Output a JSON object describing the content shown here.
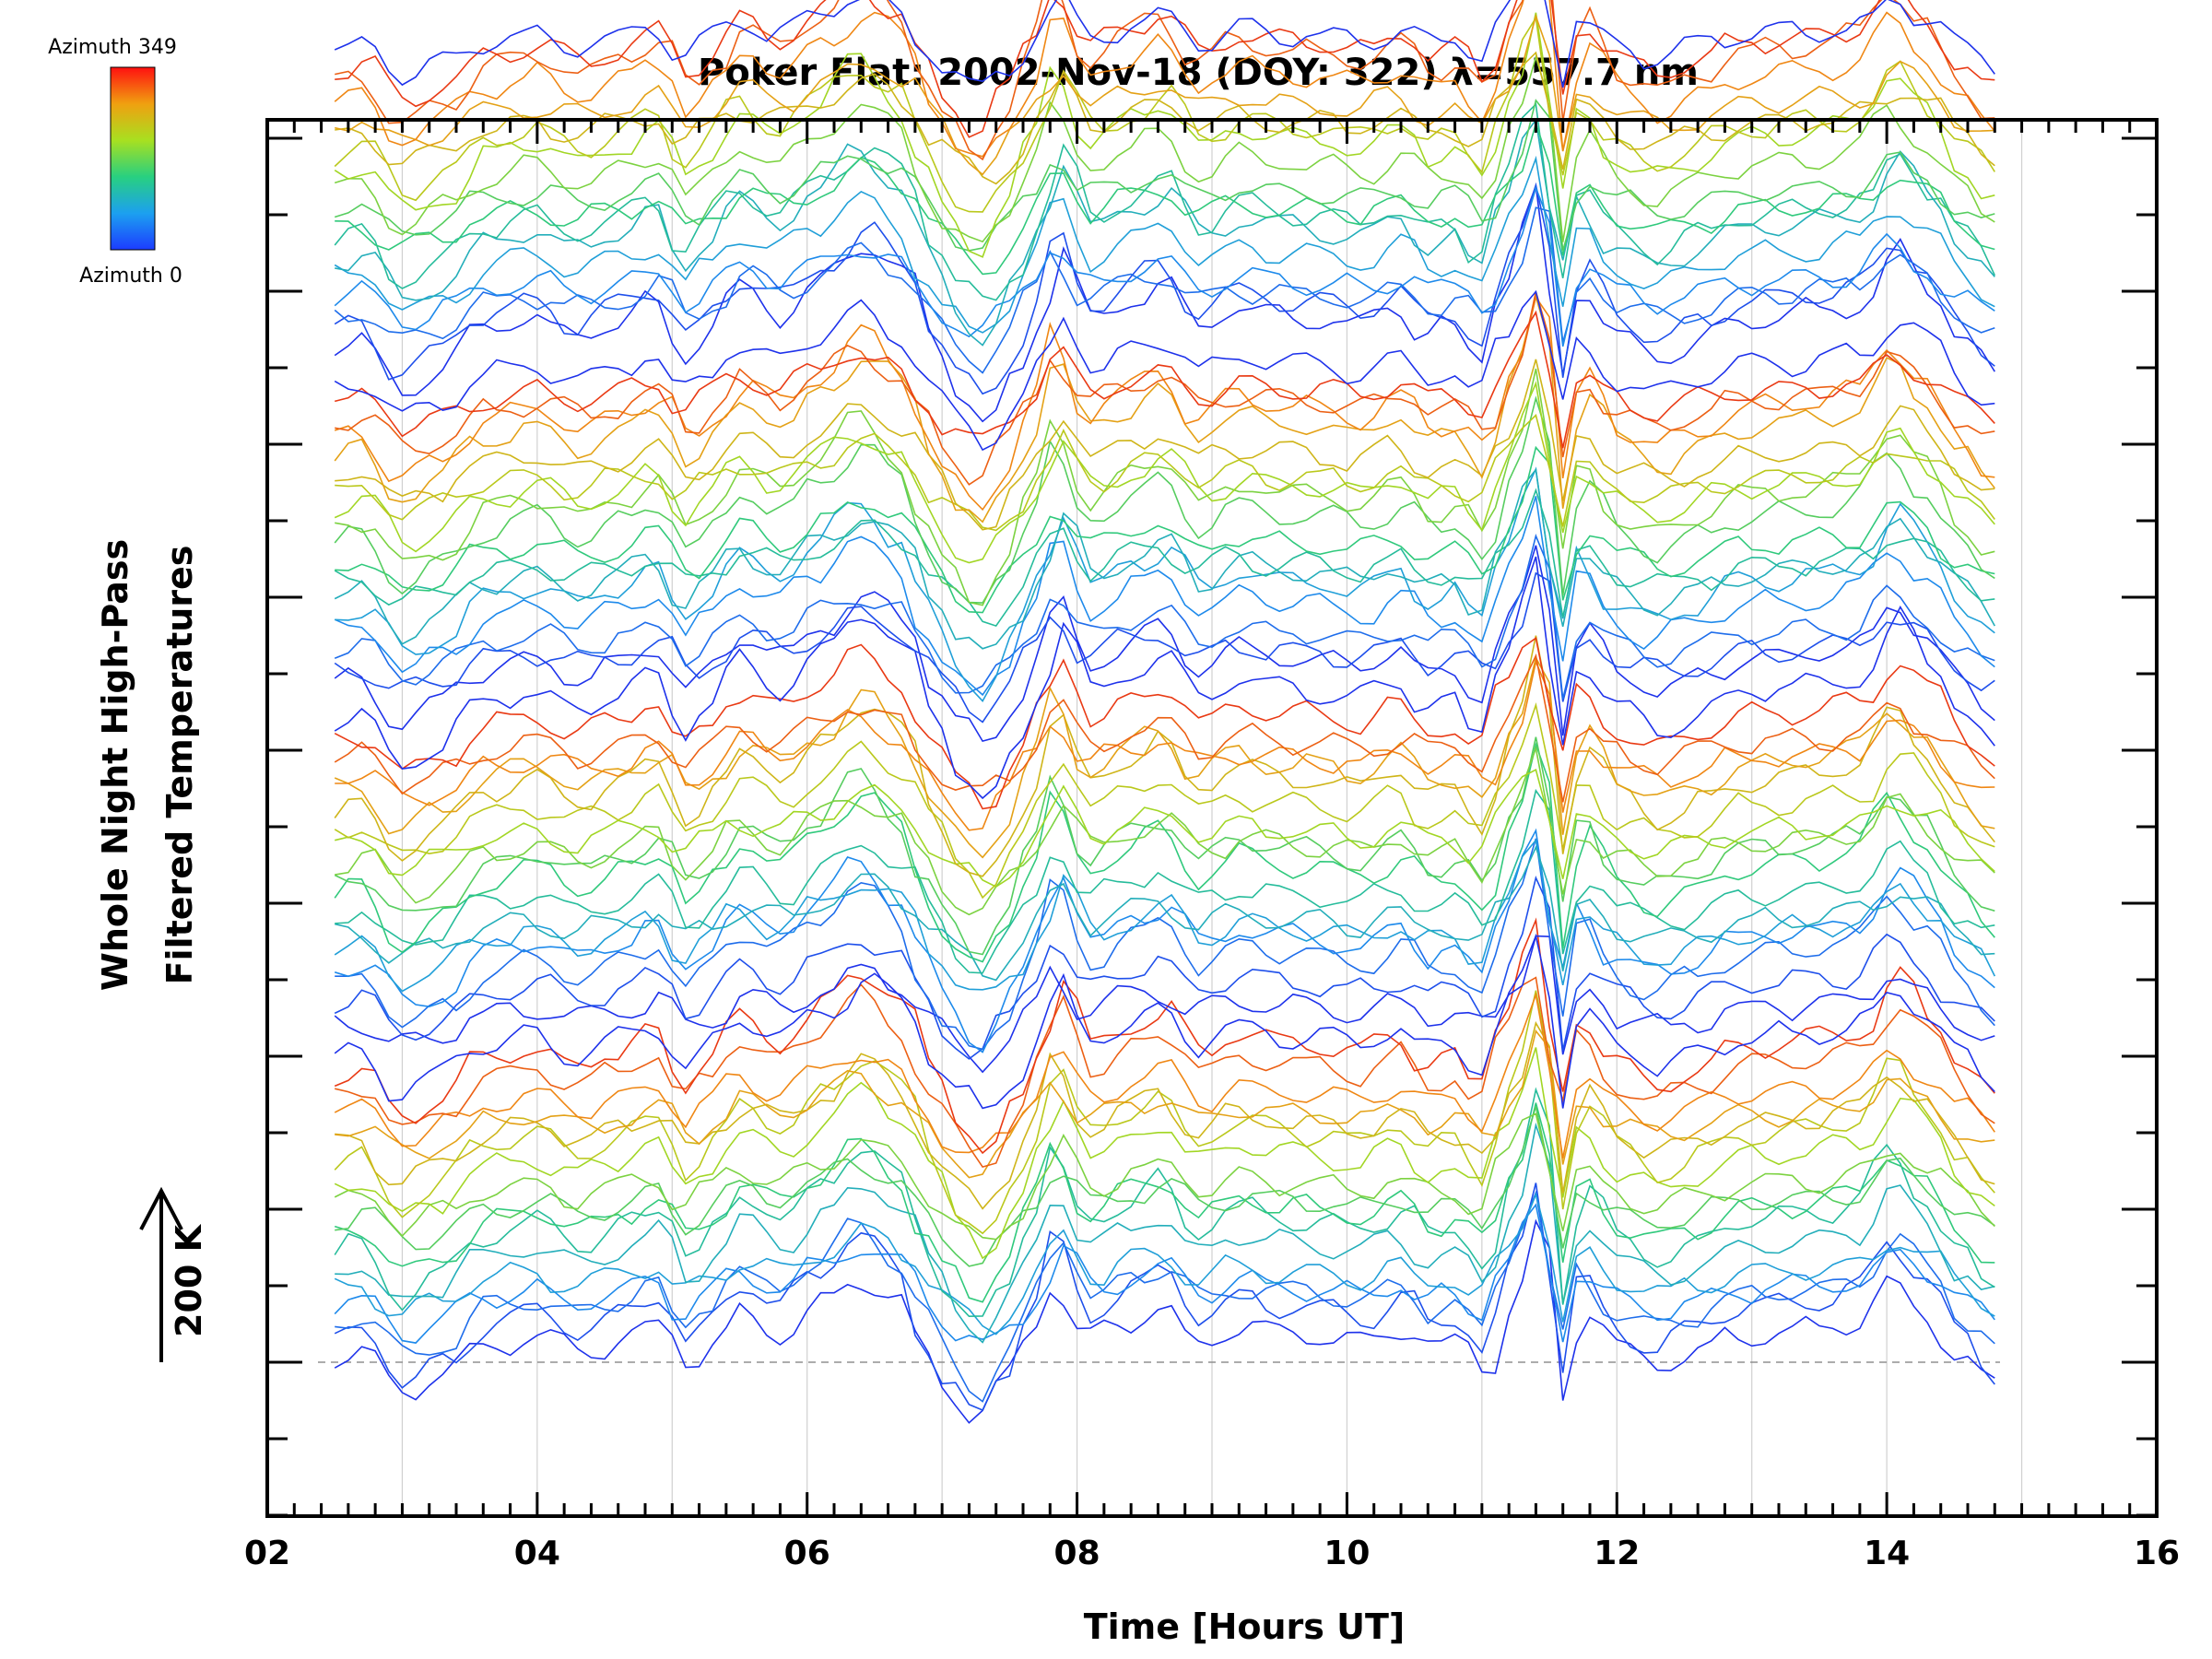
{
  "chart_data": {
    "type": "line",
    "title": "Poker Flat: 2002-Nov-18 (DOY: 322) λ=557.7 nm",
    "xlabel": "Time [Hours UT]",
    "ylabel_line1": "Whole Night High-Pass",
    "ylabel_line2": "Filtered Temperatures",
    "scale_label": "200 K",
    "scale_k": 200,
    "xlim": [
      2,
      16
    ],
    "x_ticks": [
      "02",
      "04",
      "06",
      "08",
      "10",
      "12",
      "14",
      "16"
    ],
    "x_tick_values": [
      2,
      4,
      6,
      8,
      10,
      12,
      14,
      16
    ],
    "ylim_k": [
      -200,
      2000
    ],
    "y_major_tick_k": [
      0,
      200,
      400,
      600,
      800,
      1000,
      1200,
      1400,
      1600,
      1800
    ],
    "grid": true,
    "baseline_k": 0,
    "colorbar": {
      "top_label": "Azimuth 349",
      "bottom_label": "Azimuth 0",
      "min": 0,
      "max": 349
    },
    "colors": {
      "azimuth_low": "#2020e0",
      "azimuth_mid": "#40d040",
      "azimuth_high": "#e01010",
      "grid": "#d0d0d0"
    },
    "series_count": 72,
    "azimuth_step": 4.92,
    "blocks": 4,
    "block_spacing_k": 440,
    "series_spacing_k": 23,
    "time_start": 2.5,
    "time_end": 14.8,
    "time_step": 0.1,
    "common_signal": {
      "t": [
        2.5,
        2.7,
        3.0,
        3.3,
        3.6,
        4.0,
        4.3,
        4.6,
        4.9,
        5.1,
        5.3,
        5.5,
        5.8,
        6.1,
        6.4,
        6.7,
        6.9,
        7.1,
        7.3,
        7.5,
        7.7,
        7.85,
        8.1,
        8.4,
        8.65,
        8.9,
        9.2,
        9.5,
        9.8,
        10.1,
        10.4,
        10.6,
        10.8,
        11.0,
        11.2,
        11.4,
        11.55,
        11.75,
        12.0,
        12.3,
        12.6,
        12.9,
        13.2,
        13.5,
        13.8,
        14.05,
        14.3,
        14.55,
        14.8
      ],
      "k": [
        5,
        15,
        -45,
        -20,
        25,
        40,
        15,
        35,
        60,
        -5,
        30,
        75,
        45,
        85,
        130,
        90,
        10,
        -50,
        -85,
        -30,
        45,
        125,
        35,
        65,
        85,
        30,
        55,
        45,
        40,
        30,
        55,
        20,
        30,
        -10,
        90,
        150,
        10,
        80,
        20,
        -5,
        15,
        40,
        45,
        50,
        60,
        120,
        75,
        10,
        -30
      ]
    },
    "features": [
      {
        "t": 11.45,
        "amp": 60,
        "width": 0.12,
        "note": "narrow peak"
      },
      {
        "t": 11.6,
        "amp": -70,
        "width": 0.06,
        "note": "narrow dip"
      }
    ]
  }
}
